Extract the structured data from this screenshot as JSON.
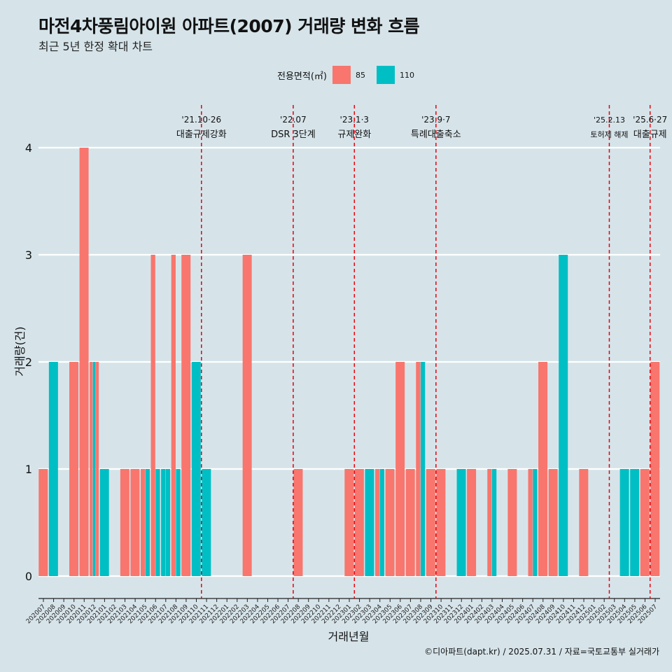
{
  "title": "마전4차풍림아이원 아파트(2007) 거래량 변화 흐름",
  "subtitle": "최근 5년 한정 확대 차트",
  "caption": "©디아파트(dapt.kr) / 2025.07.31 / 자료=국토교통부 실거래가",
  "colors": {
    "s85": "#f8766d",
    "s110": "#00bfc4",
    "background": "#d6e4ea",
    "vline": "#e8000b"
  },
  "legend": {
    "title": "전용면적(㎡)",
    "items": [
      "85",
      "110"
    ]
  },
  "chart_data": {
    "type": "bar",
    "xlabel": "거래년월",
    "ylabel": "거래량(건)",
    "ylim": [
      0,
      4
    ],
    "yticks": [
      0,
      1,
      2,
      3,
      4
    ],
    "categories": [
      "202007",
      "202008",
      "202009",
      "202010",
      "202011",
      "202012",
      "202101",
      "202102",
      "202103",
      "202104",
      "202105",
      "202106",
      "202107",
      "202108",
      "202109",
      "202110",
      "202111",
      "202112",
      "202201",
      "202202",
      "202203",
      "202204",
      "202205",
      "202206",
      "202207",
      "202208",
      "202209",
      "202210",
      "202211",
      "202212",
      "202301",
      "202302",
      "202303",
      "202304",
      "202305",
      "202306",
      "202307",
      "202308",
      "202309",
      "202310",
      "202311",
      "202312",
      "202401",
      "202402",
      "202403",
      "202404",
      "202405",
      "202406",
      "202407",
      "202408",
      "202409",
      "202410",
      "202411",
      "202412",
      "202501",
      "202502",
      "202503",
      "202504",
      "202505",
      "202506",
      "202507"
    ],
    "bars": [
      {
        "x": "202007",
        "area": "85",
        "v": 1
      },
      {
        "x": "202008",
        "area": "110",
        "v": 2
      },
      {
        "x": "202010",
        "area": "85",
        "v": 2
      },
      {
        "x": "202011",
        "area": "85",
        "v": 4
      },
      {
        "x": "202012",
        "area": "85",
        "v": 2
      },
      {
        "x": "202012",
        "area": "110",
        "v": 2
      },
      {
        "x": "202012",
        "area": "85",
        "v": 2
      },
      {
        "x": "202101",
        "area": "110",
        "v": 1
      },
      {
        "x": "202103",
        "area": "85",
        "v": 1
      },
      {
        "x": "202104",
        "area": "85",
        "v": 1
      },
      {
        "x": "202105",
        "area": "85",
        "v": 1
      },
      {
        "x": "202105",
        "area": "110",
        "v": 1
      },
      {
        "x": "202106",
        "area": "85",
        "v": 3
      },
      {
        "x": "202106",
        "area": "110",
        "v": 1
      },
      {
        "x": "202107",
        "area": "110",
        "v": 1
      },
      {
        "x": "202107",
        "area": "110",
        "v": 1
      },
      {
        "x": "202108",
        "area": "85",
        "v": 3
      },
      {
        "x": "202108",
        "area": "110",
        "v": 1
      },
      {
        "x": "202109",
        "area": "85",
        "v": 3
      },
      {
        "x": "202110",
        "area": "110",
        "v": 2
      },
      {
        "x": "202111",
        "area": "110",
        "v": 1
      },
      {
        "x": "202203",
        "area": "85",
        "v": 3
      },
      {
        "x": "202208",
        "area": "85",
        "v": 1
      },
      {
        "x": "202301",
        "area": "85",
        "v": 1
      },
      {
        "x": "202302",
        "area": "85",
        "v": 1
      },
      {
        "x": "202303",
        "area": "110",
        "v": 1
      },
      {
        "x": "202304",
        "area": "85",
        "v": 1
      },
      {
        "x": "202304",
        "area": "110",
        "v": 1
      },
      {
        "x": "202305",
        "area": "85",
        "v": 1
      },
      {
        "x": "202306",
        "area": "85",
        "v": 2
      },
      {
        "x": "202307",
        "area": "85",
        "v": 1
      },
      {
        "x": "202308",
        "area": "85",
        "v": 2
      },
      {
        "x": "202308",
        "area": "110",
        "v": 2
      },
      {
        "x": "202309",
        "area": "85",
        "v": 1
      },
      {
        "x": "202310",
        "area": "85",
        "v": 1
      },
      {
        "x": "202312",
        "area": "110",
        "v": 1
      },
      {
        "x": "202401",
        "area": "85",
        "v": 1
      },
      {
        "x": "202403",
        "area": "85",
        "v": 1
      },
      {
        "x": "202403",
        "area": "110",
        "v": 1
      },
      {
        "x": "202405",
        "area": "85",
        "v": 1
      },
      {
        "x": "202407",
        "area": "85",
        "v": 1
      },
      {
        "x": "202407",
        "area": "110",
        "v": 1
      },
      {
        "x": "202408",
        "area": "85",
        "v": 2
      },
      {
        "x": "202409",
        "area": "85",
        "v": 1
      },
      {
        "x": "202410",
        "area": "110",
        "v": 3
      },
      {
        "x": "202412",
        "area": "85",
        "v": 1
      },
      {
        "x": "202504",
        "area": "110",
        "v": 1
      },
      {
        "x": "202505",
        "area": "110",
        "v": 1
      },
      {
        "x": "202506",
        "area": "85",
        "v": 1
      },
      {
        "x": "202507",
        "area": "85",
        "v": 2
      }
    ],
    "annotations": [
      {
        "date": "'21.10·26",
        "text": "대출규제강화",
        "x": "202110"
      },
      {
        "date": "'22.07",
        "text": "DSR 3단계",
        "x": "202207"
      },
      {
        "date": "'23.1·3",
        "text": "규제완화",
        "x": "202301"
      },
      {
        "date": "'23.9·7",
        "text": "특례대출축소",
        "x": "202309"
      },
      {
        "date": "'25.2.13",
        "text": "토허제 해제",
        "x": "202502"
      },
      {
        "date": "'25.6·27",
        "text": "대출규제",
        "x": "202506"
      }
    ]
  }
}
